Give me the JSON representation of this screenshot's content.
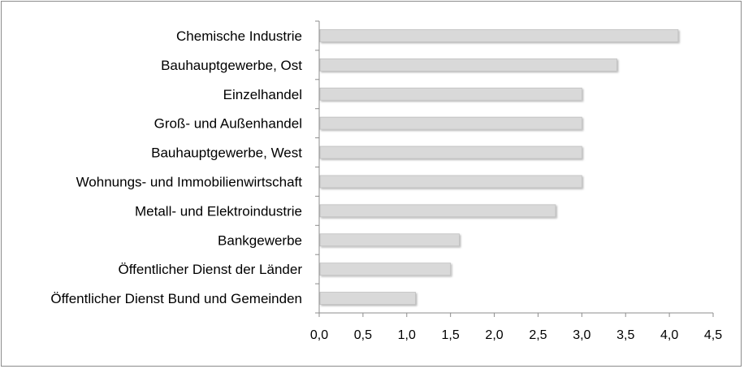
{
  "chart_data": {
    "type": "bar",
    "orientation": "horizontal",
    "title": "",
    "xlabel": "",
    "ylabel": "",
    "categories": [
      "Chemische Industrie",
      "Bauhauptgewerbe, Ost",
      "Einzelhandel",
      "Groß- und Außenhandel",
      "Bauhauptgewerbe, West",
      "Wohnungs- und Immobilienwirtschaft",
      "Metall- und Elektroindustrie",
      "Bankgewerbe",
      "Öffentlicher Dienst der Länder",
      "Öffentlicher Dienst Bund und Gemeinden"
    ],
    "values": [
      4.1,
      3.4,
      3.0,
      3.0,
      3.0,
      3.0,
      2.7,
      1.6,
      1.5,
      1.1
    ],
    "xlim": [
      0,
      4.5
    ],
    "ticks": [
      "0,0",
      "0,5",
      "1,0",
      "1,5",
      "2,0",
      "2,5",
      "3,0",
      "3,5",
      "4,0",
      "4,5"
    ],
    "grid": false,
    "legend": "none",
    "colors": {
      "bar_fill": "#d9d9d9",
      "bar_stroke": "#bfbfbf",
      "axis": "#8c8c8c"
    }
  }
}
